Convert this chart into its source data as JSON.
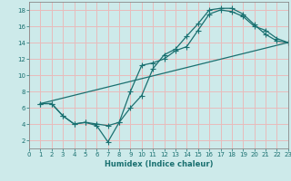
{
  "xlabel": "Humidex (Indice chaleur)",
  "xlim": [
    0,
    23
  ],
  "ylim": [
    1,
    19
  ],
  "xticks": [
    0,
    1,
    2,
    3,
    4,
    5,
    6,
    7,
    8,
    9,
    10,
    11,
    12,
    13,
    14,
    15,
    16,
    17,
    18,
    19,
    20,
    21,
    22,
    23
  ],
  "yticks": [
    2,
    4,
    6,
    8,
    10,
    12,
    14,
    16,
    18
  ],
  "background_color": "#cdeaea",
  "grid_color": "#e8bbbb",
  "line_color": "#1a7070",
  "curves": [
    {
      "x": [
        1,
        2,
        3,
        4,
        5,
        6,
        7,
        8,
        9,
        10,
        11,
        12,
        13,
        14,
        15,
        16,
        17,
        18,
        19,
        20,
        21,
        22,
        23
      ],
      "y": [
        6.5,
        6.5,
        5.0,
        4.0,
        4.2,
        4.0,
        3.8,
        4.2,
        6.0,
        7.5,
        10.8,
        12.5,
        13.2,
        14.8,
        16.3,
        18.0,
        18.2,
        18.2,
        17.5,
        16.2,
        15.0,
        14.2,
        14.0
      ],
      "marker": true
    },
    {
      "x": [
        1,
        2,
        3,
        4,
        5,
        6,
        7,
        8,
        9,
        10,
        11,
        12,
        13,
        14,
        15,
        16,
        17,
        18,
        19,
        20,
        21,
        22,
        23
      ],
      "y": [
        6.5,
        6.5,
        5.0,
        4.0,
        4.2,
        3.8,
        1.8,
        4.2,
        8.0,
        11.2,
        11.5,
        12.0,
        13.0,
        13.5,
        15.5,
        17.5,
        18.0,
        17.8,
        17.2,
        16.0,
        15.5,
        14.5,
        14.0
      ],
      "marker": true
    },
    {
      "x": [
        1,
        23
      ],
      "y": [
        6.5,
        14.0
      ],
      "marker": false
    }
  ]
}
